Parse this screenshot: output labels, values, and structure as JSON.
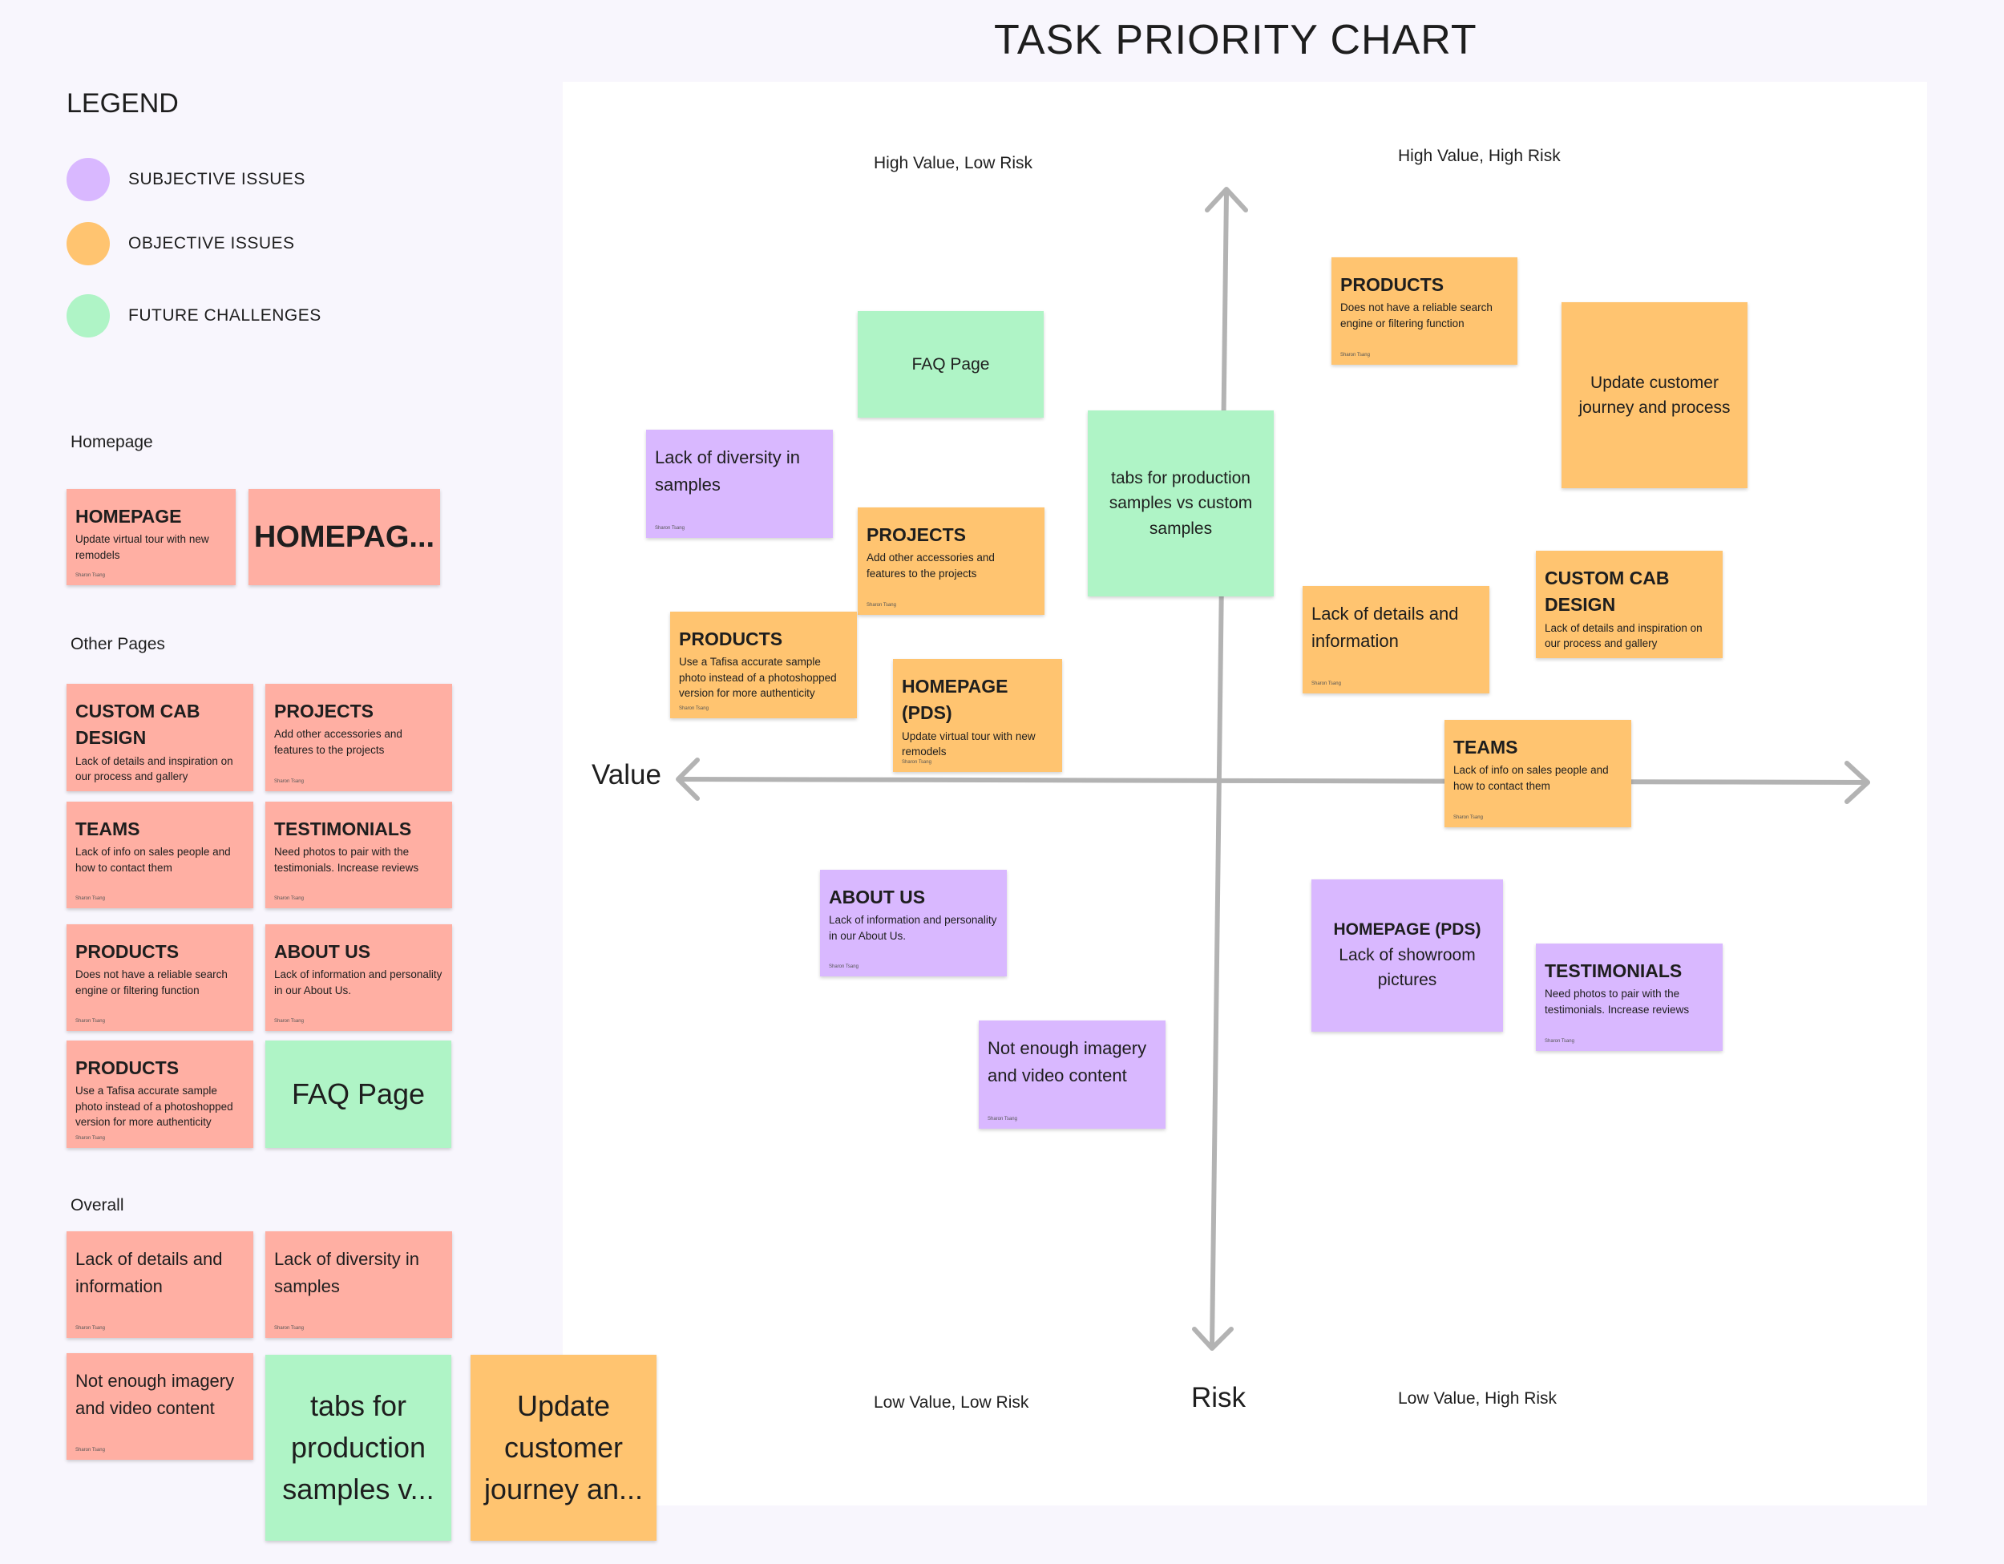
{
  "title": "TASK PRIORITY CHART",
  "legend": {
    "title": "LEGEND",
    "items": [
      {
        "label": "SUBJECTIVE ISSUES",
        "color": "#d9b8ff"
      },
      {
        "label": "OBJECTIVE ISSUES",
        "color": "#ffc470"
      },
      {
        "label": "FUTURE CHALLENGES",
        "color": "#aff4c6"
      }
    ]
  },
  "sections": {
    "homepage": "Homepage",
    "other_pages": "Other Pages",
    "overall": "Overall"
  },
  "colors": {
    "pink": "#ffafa3",
    "orange": "#ffc470",
    "green": "#aff4c6",
    "purple": "#d9b8ff",
    "axis": "#b3b3b3"
  },
  "author": "Sharon Tsang",
  "sidebar_notes": {
    "homepage_update": {
      "title": "HOMEPAGE",
      "desc": "Update virtual tour with new remodels"
    },
    "homepage_big": {
      "body": "HOMEPAG..."
    },
    "custom_cab": {
      "title": "CUSTOM CAB DESIGN",
      "desc": "Lack of details and inspiration on our process and gallery"
    },
    "projects": {
      "title": "PROJECTS",
      "desc": "Add other accessories and features to the projects"
    },
    "teams": {
      "title": "TEAMS",
      "desc": "Lack of info on sales people and how to contact them"
    },
    "testimonials": {
      "title": "TESTIMONIALS",
      "desc": "Need photos to pair with the testimonials. Increase reviews"
    },
    "products_search": {
      "title": "PRODUCTS",
      "desc": "Does not have a reliable search engine or filtering function"
    },
    "about_us": {
      "title": "ABOUT US",
      "desc": "Lack of information and personality in our About Us."
    },
    "products_photo": {
      "title": "PRODUCTS",
      "desc": "Use a Tafisa accurate sample photo instead of a photoshopped version for more  authenticity"
    },
    "faq": {
      "body": "FAQ Page"
    },
    "lack_details": {
      "body": "Lack of details and information"
    },
    "lack_diversity": {
      "body": "Lack of diversity in samples"
    },
    "not_enough_imagery": {
      "body": "Not enough imagery and video content"
    },
    "tabs_production": {
      "body": "tabs for production samples v..."
    },
    "update_journey": {
      "body": "Update customer journey an..."
    }
  },
  "chart": {
    "quadrants": {
      "top_left": "High Value, Low Risk",
      "top_right": "High Value, High Risk",
      "bottom_left": "Low Value, Low Risk",
      "bottom_right": "Low Value, High Risk"
    },
    "x_axis_label": "Value",
    "y_axis_label": "Risk",
    "notes": {
      "faq": {
        "body": "FAQ Page"
      },
      "lack_diversity": {
        "body": "Lack of diversity in samples"
      },
      "projects": {
        "title": "PROJECTS",
        "desc": "Add other accessories and features to the projects"
      },
      "products_photo": {
        "title": "PRODUCTS",
        "desc": "Use a Tafisa accurate sample photo instead of a photoshopped version for more  authenticity"
      },
      "homepage_pds_update": {
        "title": "HOMEPAGE (PDS)",
        "desc": "Update virtual tour with new remodels"
      },
      "tabs_production": {
        "body": "tabs for production samples vs custom samples"
      },
      "products_search": {
        "title": "PRODUCTS",
        "desc": "Does not have a reliable search engine or filtering function"
      },
      "update_journey": {
        "body": "Update customer journey and process"
      },
      "lack_details": {
        "body": "Lack of details and information"
      },
      "custom_cab": {
        "title": "CUSTOM CAB DESIGN",
        "desc": "Lack of details and inspiration on our process and gallery"
      },
      "teams": {
        "title": "TEAMS",
        "desc": "Lack of info on sales people and how to contact them"
      },
      "about_us": {
        "title": "ABOUT US",
        "desc": "Lack of information and personality in our About Us."
      },
      "homepage_pds_showroom": {
        "title": "HOMEPAGE (PDS)",
        "body": "Lack of showroom pictures"
      },
      "testimonials": {
        "title": "TESTIMONIALS",
        "desc": "Need photos to pair with the testimonials. Increase reviews"
      },
      "not_enough_imagery": {
        "body": "Not enough imagery and video content"
      }
    }
  }
}
